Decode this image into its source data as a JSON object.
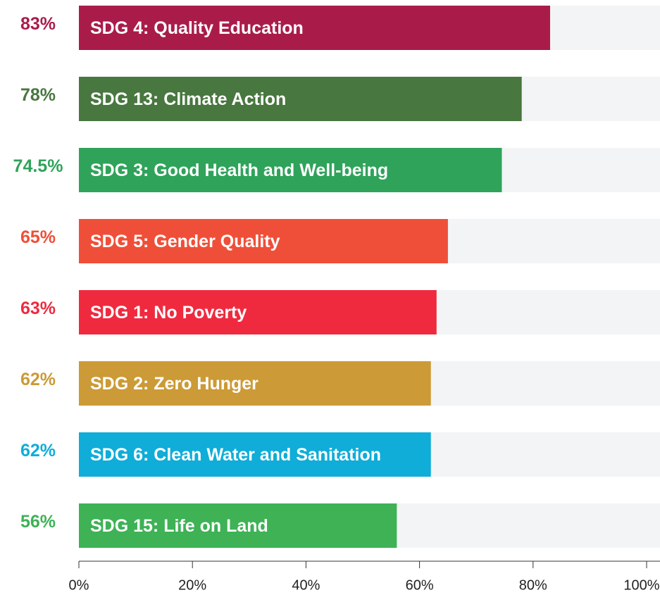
{
  "chart_data": {
    "type": "bar",
    "orientation": "horizontal",
    "categories": [
      "SDG 4: Quality Education",
      "SDG 13: Climate Action",
      "SDG 3: Good Health and Well-being",
      "SDG 5: Gender Quality",
      "SDG 1: No Poverty",
      "SDG 2: Zero Hunger",
      "SDG 6: Clean Water and Sanitation",
      "SDG 15: Life on Land"
    ],
    "values": [
      83,
      78,
      74.5,
      65,
      63,
      62,
      62,
      56
    ],
    "value_labels": [
      "83%",
      "78%",
      "74.5%",
      "65%",
      "63%",
      "62%",
      "62%",
      "56%"
    ],
    "colors": [
      "#a91c4a",
      "#48773f",
      "#2fa35a",
      "#ef4f38",
      "#ef2a3f",
      "#cc9a36",
      "#0fadd8",
      "#3eb255"
    ],
    "track_color": "#f2f4f5",
    "xlim": [
      0,
      100
    ],
    "xticks": [
      {
        "value": 0,
        "label": "0%"
      },
      {
        "value": 20,
        "label": "20%"
      },
      {
        "value": 40,
        "label": "40%"
      },
      {
        "value": 60,
        "label": "60%"
      },
      {
        "value": 80,
        "label": "80%"
      },
      {
        "value": 100,
        "label": "100%"
      }
    ]
  }
}
